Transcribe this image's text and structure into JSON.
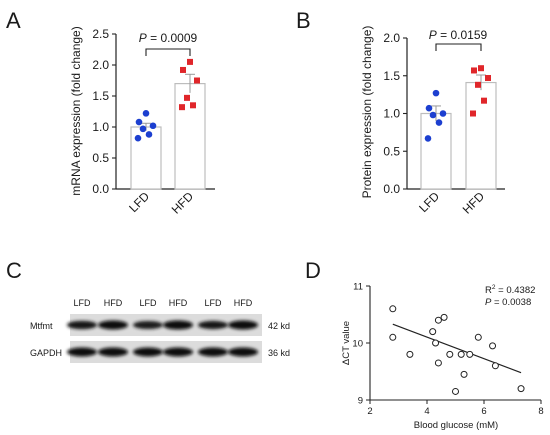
{
  "panels": {
    "A": {
      "letter": "A",
      "ylabel": "mRNA expression (fold change)",
      "pvalue_prefix": "P",
      "pvalue_text": " = 0.0009",
      "chart_data": {
        "type": "bar",
        "categories": [
          "LFD",
          "HFD"
        ],
        "values": [
          1.0,
          1.7
        ],
        "sem": [
          0.06,
          0.15
        ],
        "points": [
          [
            1.22,
            1.08,
            1.02,
            0.97,
            0.88,
            0.82
          ],
          [
            2.05,
            1.92,
            1.75,
            1.47,
            1.35,
            1.32
          ]
        ],
        "point_colors": [
          "#1c3fd0",
          "#e0262a"
        ],
        "ylim": [
          0,
          2.5
        ],
        "yticks": [
          "0.0",
          "0.5",
          "1.0",
          "1.5",
          "2.0",
          "2.5"
        ],
        "ytick_values": [
          0,
          0.5,
          1.0,
          1.5,
          2.0,
          2.5
        ],
        "bar_color": "#ffffff",
        "bar_edge_color": "#bdbdbd"
      }
    },
    "B": {
      "letter": "B",
      "ylabel": "Protein expression (fold change)",
      "pvalue_prefix": "P",
      "pvalue_text": " = 0.0159",
      "chart_data": {
        "type": "bar",
        "categories": [
          "LFD",
          "HFD"
        ],
        "values": [
          1.0,
          1.41
        ],
        "sem": [
          0.1,
          0.1
        ],
        "points": [
          [
            1.27,
            1.07,
            1.0,
            0.98,
            0.88,
            0.67
          ],
          [
            1.6,
            1.57,
            1.47,
            1.38,
            1.17,
            1.0
          ]
        ],
        "point_colors": [
          "#1c3fd0",
          "#e0262a"
        ],
        "ylim": [
          0,
          2.0
        ],
        "yticks": [
          "0.0",
          "0.5",
          "1.0",
          "1.5",
          "2.0"
        ],
        "ytick_values": [
          0,
          0.5,
          1.0,
          1.5,
          2.0
        ],
        "bar_color": "#ffffff",
        "bar_edge_color": "#bdbdbd"
      }
    },
    "C": {
      "letter": "C",
      "lane_labels": [
        "LFD",
        "HFD",
        "LFD",
        "HFD",
        "LFD",
        "HFD"
      ],
      "rows": [
        {
          "label": "Mtfmt",
          "size": "42 kd",
          "intensity": [
            0.7,
            0.9,
            0.6,
            0.95,
            0.65,
            0.9
          ]
        },
        {
          "label": "GAPDH",
          "size": "36 kd",
          "intensity": [
            0.9,
            0.92,
            0.9,
            0.92,
            0.9,
            0.92
          ]
        }
      ]
    },
    "D": {
      "letter": "D",
      "ylabel": "ΔCT value",
      "xlabel": "Blood glucose (mM)",
      "r2_text": "R",
      "r2_sup": "2",
      "r2_value": " = 0.4382",
      "p_prefix": "P",
      "p_value": " = 0.0038",
      "chart_data": {
        "type": "scatter",
        "x": [
          2.8,
          2.8,
          3.4,
          4.2,
          4.3,
          4.4,
          4.4,
          4.6,
          4.8,
          5.0,
          5.2,
          5.3,
          5.5,
          5.8,
          6.3,
          6.4,
          7.3
        ],
        "y": [
          10.6,
          10.1,
          9.8,
          10.2,
          10.0,
          10.4,
          9.65,
          10.45,
          9.8,
          9.15,
          9.8,
          9.45,
          9.8,
          10.1,
          9.95,
          9.6,
          9.2
        ],
        "fit_line": {
          "x": [
            2.8,
            7.3
          ],
          "y": [
            10.33,
            9.48
          ]
        },
        "xlim": [
          2,
          8
        ],
        "ylim": [
          9,
          11
        ],
        "xticks": [
          "2",
          "4",
          "6",
          "8"
        ],
        "xtick_values": [
          2,
          4,
          6,
          8
        ],
        "yticks": [
          "9",
          "10",
          "11"
        ],
        "ytick_values": [
          9,
          10,
          11
        ]
      }
    }
  }
}
